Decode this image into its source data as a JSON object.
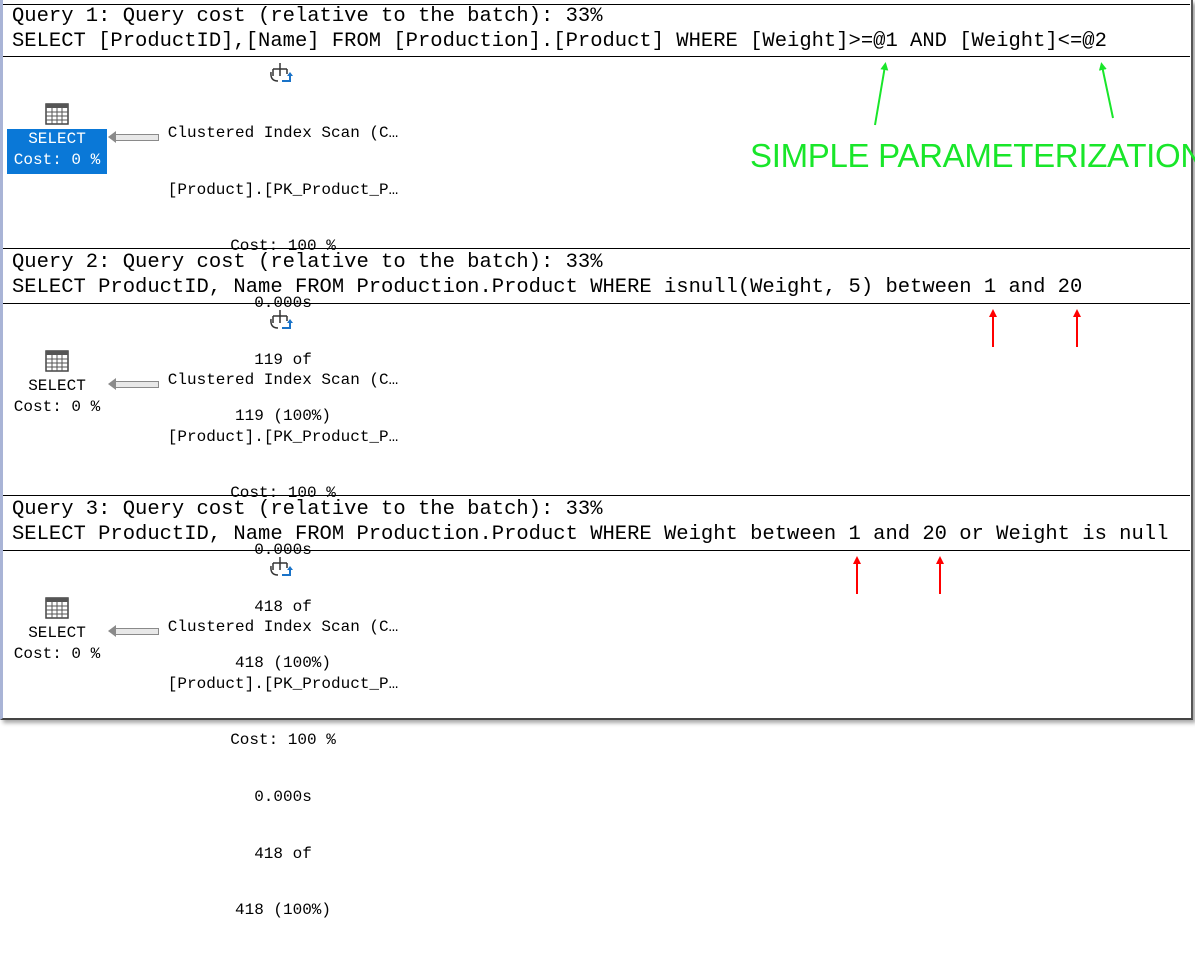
{
  "queries": [
    {
      "header": "Query 1: Query cost (relative to the batch): 33%",
      "sql": "SELECT [ProductID],[Name] FROM [Production].[Product] WHERE [Weight]>=@1 AND [Weight]<=@2",
      "select_node": {
        "label": "SELECT",
        "cost": "Cost: 0 %",
        "selected": true
      },
      "scan_node": {
        "line1": "Clustered Index Scan (C…",
        "line2": "[Product].[PK_Product_P…",
        "cost": "Cost: 100 %",
        "time": "0.000s",
        "rows_line1": "119 of",
        "rows_line2": "119 (100%)"
      }
    },
    {
      "header": "Query 2: Query cost (relative to the batch): 33%",
      "sql": "SELECT ProductID, Name FROM Production.Product WHERE isnull(Weight, 5) between 1 and 20",
      "select_node": {
        "label": "SELECT",
        "cost": "Cost: 0 %",
        "selected": false
      },
      "scan_node": {
        "line1": "Clustered Index Scan (C…",
        "line2": "[Product].[PK_Product_P…",
        "cost": "Cost: 100 %",
        "time": "0.000s",
        "rows_line1": "418 of",
        "rows_line2": "418 (100%)"
      }
    },
    {
      "header": "Query 3: Query cost (relative to the batch): 33%",
      "sql": "SELECT ProductID, Name FROM Production.Product WHERE Weight between 1 and 20 or Weight is null",
      "select_node": {
        "label": "SELECT",
        "cost": "Cost: 0 %",
        "selected": false
      },
      "scan_node": {
        "line1": "Clustered Index Scan (C…",
        "line2": "[Product].[PK_Product_P…",
        "cost": "Cost: 100 %",
        "time": "0.000s",
        "rows_line1": "418 of",
        "rows_line2": "418 (100%)"
      }
    }
  ],
  "annotation": {
    "text": "SIMPLE PARAMETERIZATION",
    "color_green": "#19e62a",
    "color_red": "#ff0000"
  },
  "colors": {
    "selected_node": "#0a78d7"
  }
}
